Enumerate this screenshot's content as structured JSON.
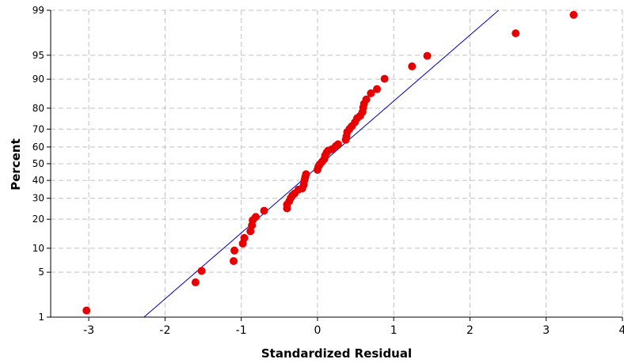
{
  "chart_data": {
    "type": "scatter",
    "title": "",
    "xlabel": "Standardized Residual",
    "ylabel": "Percent",
    "xlim": [
      -3.5,
      4.0
    ],
    "ylim": [
      1,
      99
    ],
    "y_scale": "normal-probability",
    "grid": true,
    "x_ticks": [
      -3,
      -2,
      -1,
      0,
      1,
      2,
      3,
      4
    ],
    "y_ticks": [
      1,
      5,
      10,
      20,
      30,
      40,
      50,
      60,
      70,
      80,
      90,
      95,
      99
    ],
    "colors": {
      "points": "#e60000",
      "fit_line": "#0000cc",
      "grid": "#c0c0c0"
    },
    "fit_line": {
      "mean": 0.05,
      "sd": 1.0
    },
    "points": [
      {
        "x": -3.03,
        "y": 1.3
      },
      {
        "x": -1.6,
        "y": 3.6
      },
      {
        "x": -1.52,
        "y": 5.2
      },
      {
        "x": -1.1,
        "y": 7.0
      },
      {
        "x": -1.09,
        "y": 9.4
      },
      {
        "x": -0.98,
        "y": 11.3
      },
      {
        "x": -0.96,
        "y": 13.0
      },
      {
        "x": -0.88,
        "y": 15.3
      },
      {
        "x": -0.86,
        "y": 17.5
      },
      {
        "x": -0.85,
        "y": 19.6
      },
      {
        "x": -0.81,
        "y": 21.0
      },
      {
        "x": -0.7,
        "y": 23.8
      },
      {
        "x": -0.4,
        "y": 24.9
      },
      {
        "x": -0.4,
        "y": 26.8
      },
      {
        "x": -0.37,
        "y": 28.5
      },
      {
        "x": -0.35,
        "y": 30.2
      },
      {
        "x": -0.33,
        "y": 31.5
      },
      {
        "x": -0.3,
        "y": 32.6
      },
      {
        "x": -0.25,
        "y": 34.7
      },
      {
        "x": -0.2,
        "y": 35.4
      },
      {
        "x": -0.18,
        "y": 37.5
      },
      {
        "x": -0.17,
        "y": 40.2
      },
      {
        "x": -0.16,
        "y": 42.0
      },
      {
        "x": -0.15,
        "y": 43.7
      },
      {
        "x": 0.0,
        "y": 46.3
      },
      {
        "x": 0.01,
        "y": 48.0
      },
      {
        "x": 0.03,
        "y": 49.6
      },
      {
        "x": 0.06,
        "y": 51.2
      },
      {
        "x": 0.09,
        "y": 52.9
      },
      {
        "x": 0.1,
        "y": 55.0
      },
      {
        "x": 0.12,
        "y": 56.7
      },
      {
        "x": 0.14,
        "y": 57.9
      },
      {
        "x": 0.19,
        "y": 58.7
      },
      {
        "x": 0.24,
        "y": 60.5
      },
      {
        "x": 0.27,
        "y": 61.6
      },
      {
        "x": 0.37,
        "y": 64.2
      },
      {
        "x": 0.38,
        "y": 66.1
      },
      {
        "x": 0.39,
        "y": 68.4
      },
      {
        "x": 0.42,
        "y": 70.1
      },
      {
        "x": 0.45,
        "y": 71.5
      },
      {
        "x": 0.49,
        "y": 73.5
      },
      {
        "x": 0.52,
        "y": 75.5
      },
      {
        "x": 0.56,
        "y": 76.6
      },
      {
        "x": 0.59,
        "y": 78.3
      },
      {
        "x": 0.6,
        "y": 80.3
      },
      {
        "x": 0.61,
        "y": 81.8
      },
      {
        "x": 0.64,
        "y": 83.5
      },
      {
        "x": 0.7,
        "y": 85.7
      },
      {
        "x": 0.78,
        "y": 87.1
      },
      {
        "x": 0.88,
        "y": 90.1
      },
      {
        "x": 1.24,
        "y": 93.0
      },
      {
        "x": 1.44,
        "y": 94.9
      },
      {
        "x": 2.6,
        "y": 97.6
      },
      {
        "x": 3.36,
        "y": 98.8
      }
    ]
  }
}
